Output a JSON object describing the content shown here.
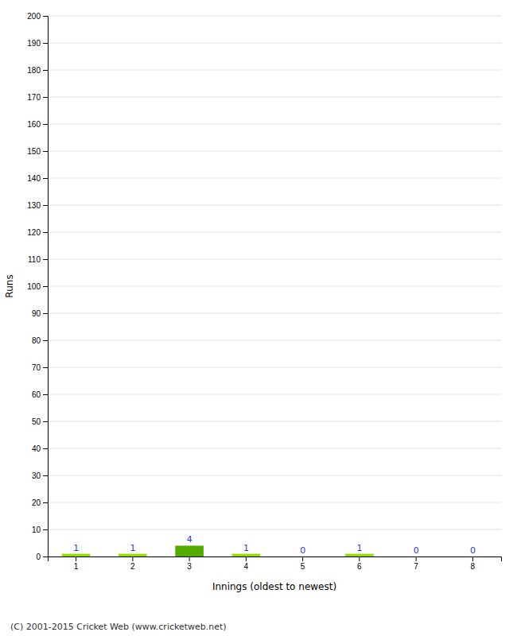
{
  "chart_data": {
    "type": "bar",
    "categories": [
      "1",
      "2",
      "3",
      "4",
      "5",
      "6",
      "7",
      "8"
    ],
    "values": [
      1,
      1,
      4,
      1,
      0,
      1,
      0,
      0
    ],
    "colors": [
      "#99dd00",
      "#99dd00",
      "#55aa00",
      "#99dd00",
      "#99dd00",
      "#99dd00",
      "#99dd00",
      "#99dd00"
    ],
    "xlabel": "Innings (oldest to newest)",
    "ylabel": "Runs",
    "ylim": [
      0,
      200
    ],
    "yticks": [
      0,
      10,
      20,
      30,
      40,
      50,
      60,
      70,
      80,
      90,
      100,
      110,
      120,
      130,
      140,
      150,
      160,
      170,
      180,
      190,
      200
    ],
    "grid": true,
    "data_labels": true,
    "annotations": [
      "(C) 2001-2015 Cricket Web (www.cricketweb.net)"
    ]
  }
}
